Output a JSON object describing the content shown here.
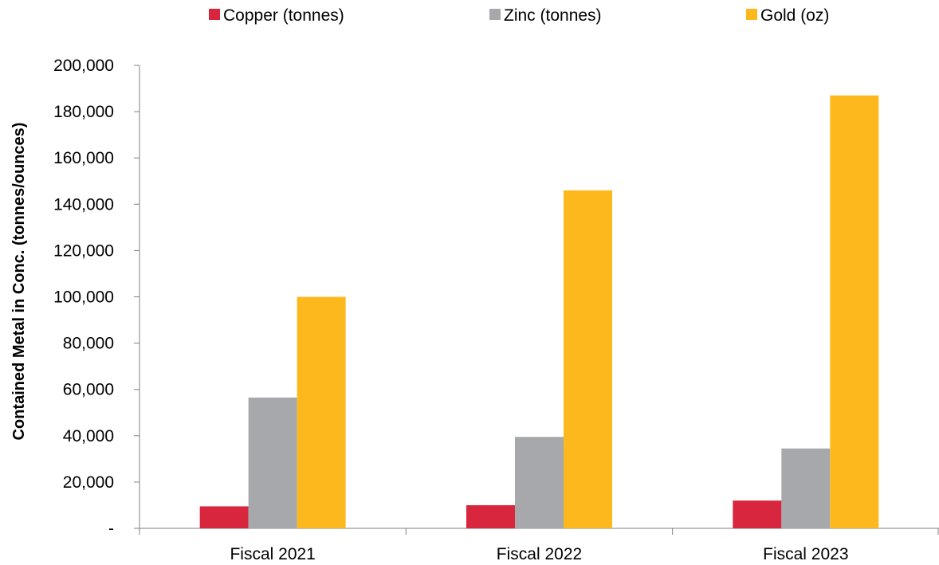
{
  "chart_data": {
    "type": "bar",
    "title": "",
    "xlabel": "",
    "ylabel": "Contained Metal in Conc. (tonnes/ounces)",
    "categories": [
      "Fiscal 2021",
      "Fiscal 2022",
      "Fiscal 2023"
    ],
    "series": [
      {
        "name": "Copper (tonnes)",
        "color": "#d7263d",
        "values": [
          9500,
          10000,
          12000
        ]
      },
      {
        "name": "Zinc (tonnes)",
        "color": "#a6a8ab",
        "values": [
          56500,
          39500,
          34500
        ]
      },
      {
        "name": "Gold (oz)",
        "color": "#fdb81e",
        "values": [
          100000,
          146000,
          187000
        ]
      }
    ],
    "ylim": [
      0,
      200000
    ],
    "yticks": [
      0,
      20000,
      40000,
      60000,
      80000,
      100000,
      120000,
      140000,
      160000,
      180000,
      200000
    ],
    "ytick_labels": [
      "-",
      "20,000",
      "40,000",
      "60,000",
      "80,000",
      "100,000",
      "120,000",
      "140,000",
      "160,000",
      "180,000",
      "200,000"
    ],
    "grid": false,
    "legend_position": "top"
  }
}
